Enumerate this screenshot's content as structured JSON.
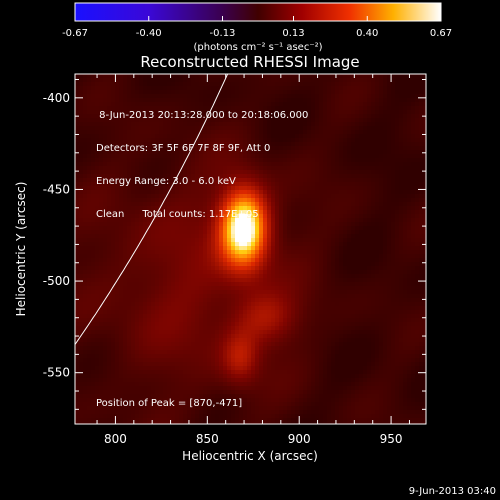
{
  "chart_data": {
    "type": "heatmap",
    "title": "Reconstructed RHESSI Image",
    "xlabel": "Heliocentric X (arcsec)",
    "ylabel": "Heliocentric Y (arcsec)",
    "xlim": [
      778,
      969
    ],
    "ylim": [
      -578,
      -387
    ],
    "x_ticks": [
      800,
      850,
      900,
      950
    ],
    "y_ticks": [
      -400,
      -450,
      -500,
      -550
    ],
    "colorbar": {
      "ticks": [
        "-0.67",
        "-0.40",
        "-0.13",
        "0.13",
        "0.40",
        "0.67"
      ],
      "tick_values": [
        -0.67,
        -0.4,
        -0.13,
        0.13,
        0.4,
        0.67
      ],
      "range": [
        -0.67,
        0.67
      ],
      "unit_label": "(photons cm⁻² s⁻¹ asec⁻²)"
    },
    "sources": [
      {
        "x": 870,
        "y": -471,
        "sx": 9,
        "sy": 15,
        "amp": 0.67
      },
      {
        "x": 868,
        "y": -542,
        "sx": 7,
        "sy": 10,
        "amp": 0.18
      },
      {
        "x": 882,
        "y": -520,
        "sx": 12,
        "sy": 10,
        "amp": 0.16
      },
      {
        "x": 840,
        "y": -500,
        "sx": 40,
        "sy": 45,
        "amp": 0.12
      }
    ],
    "limb_arc": {
      "center": [
        0,
        0
      ],
      "radius_arcsec": 944
    },
    "annotations": {
      "time_range": " 8-Jun-2013 20:13:28.000 to 20:18:06.000",
      "detectors": "Detectors: 3F 5F 6F 7F 8F 9F, Att 0",
      "energy": "Energy Range: 3.0 - 6.0 keV",
      "method": "Clean",
      "total_counts": "Total counts: 1.17E+05",
      "peak": "Position of Peak = [870,-471]"
    },
    "plot_date": "9-Jun-2013 03:40"
  }
}
